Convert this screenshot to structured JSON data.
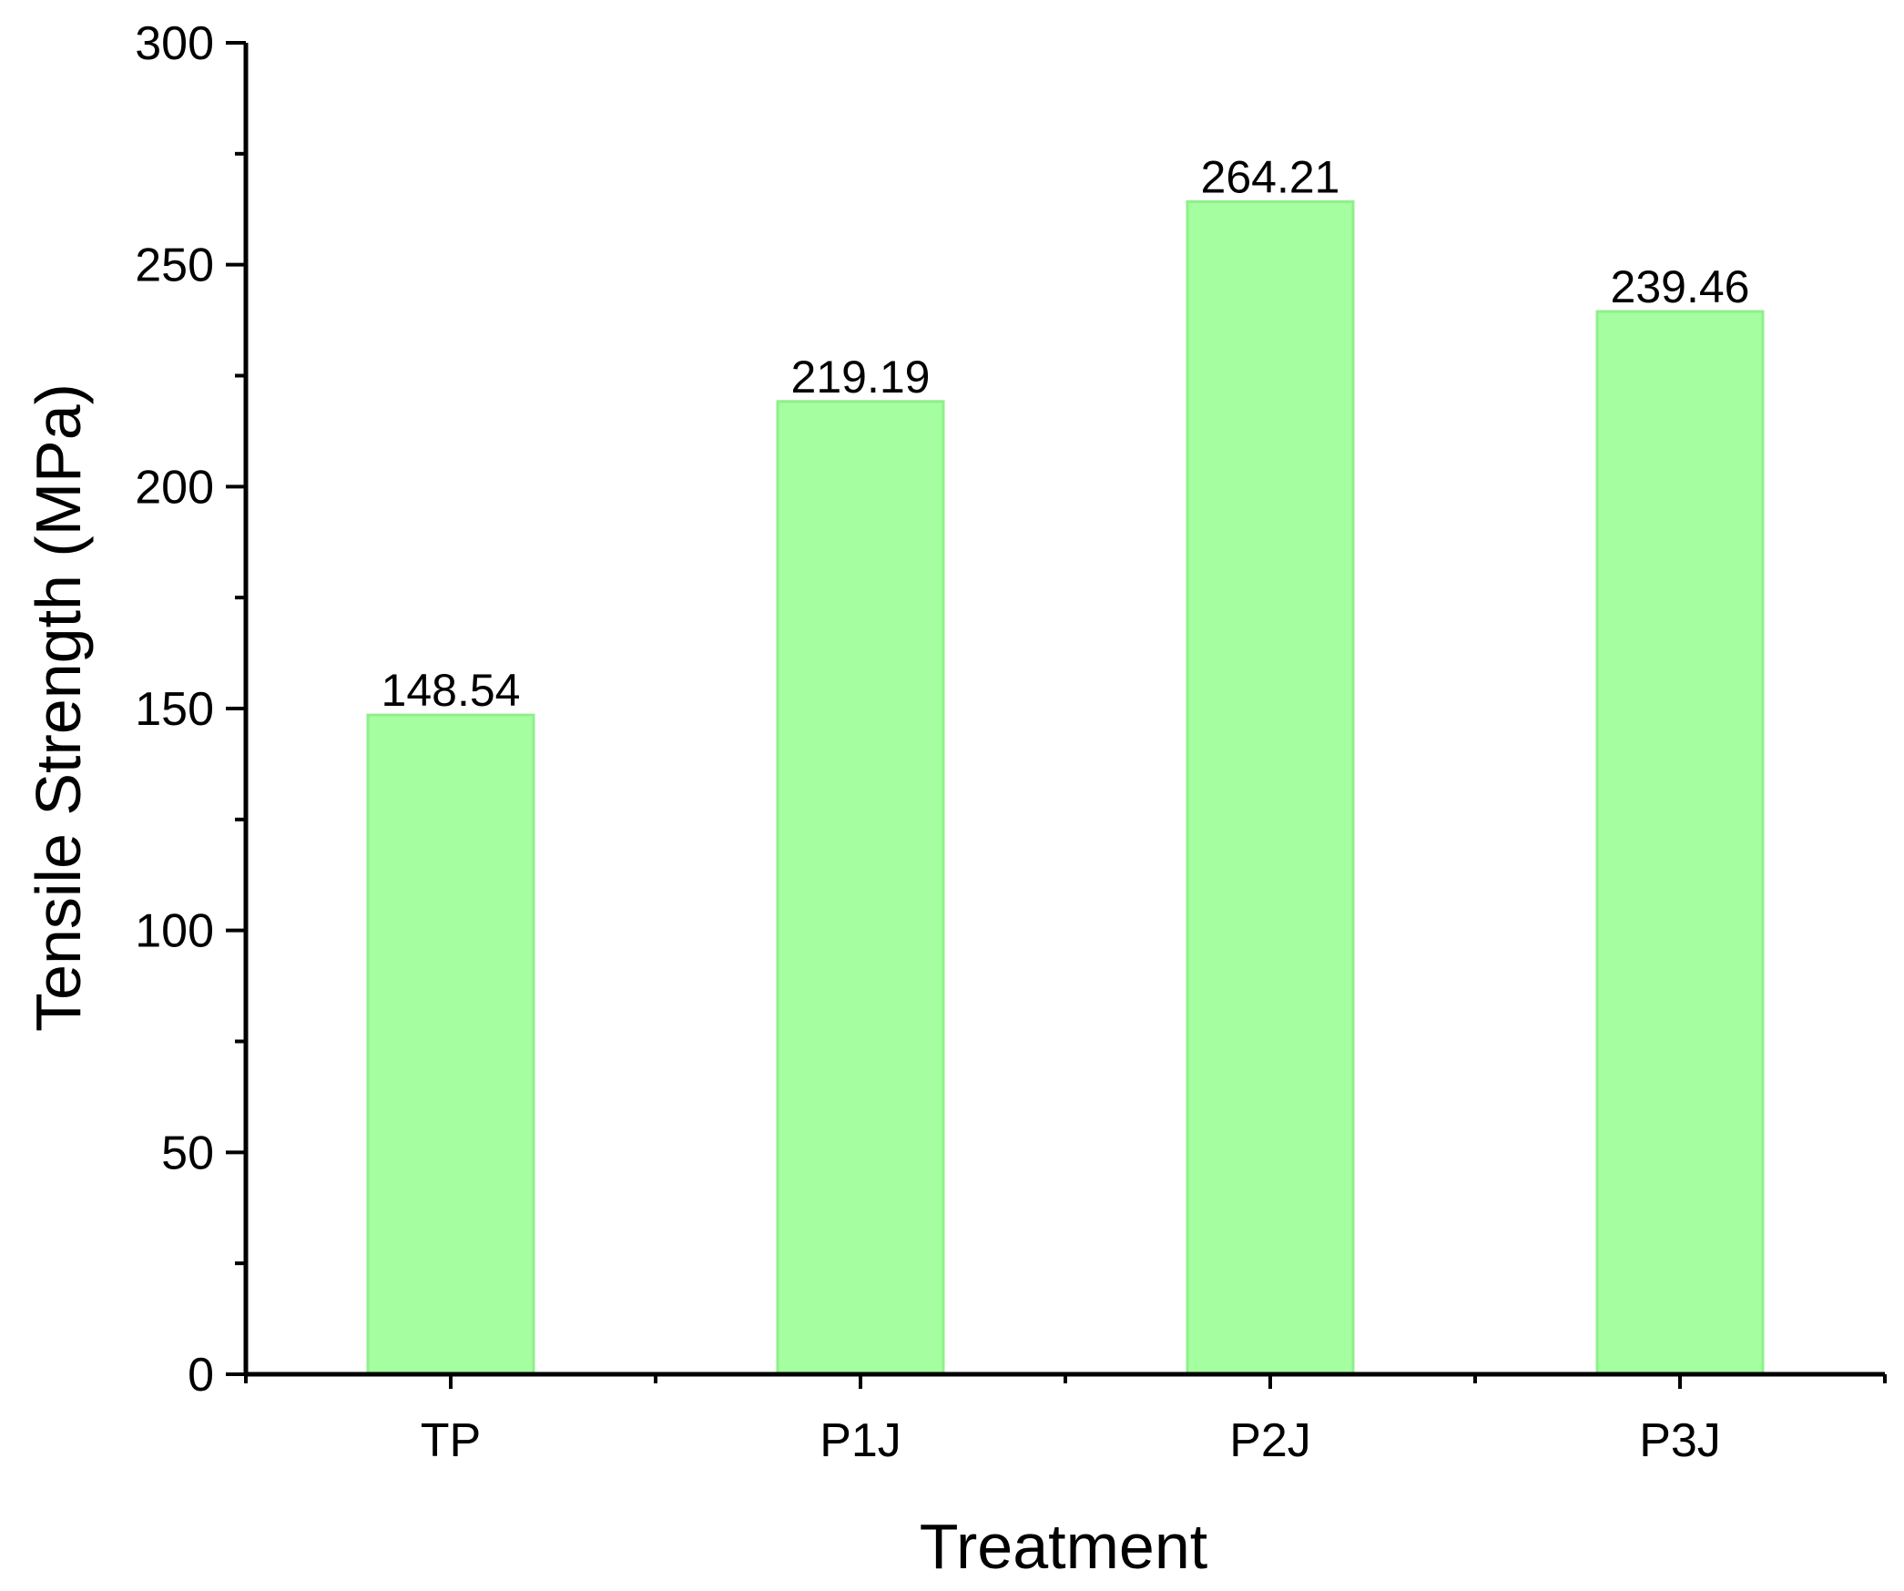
{
  "chart_data": {
    "type": "bar",
    "categories": [
      "TP",
      "P1J",
      "P2J",
      "P3J"
    ],
    "values": [
      148.54,
      219.19,
      264.21,
      239.46
    ],
    "data_labels": [
      "148.54",
      "219.19",
      "264.21",
      "239.46"
    ],
    "title": "",
    "xlabel": "Treatment",
    "ylabel": "Tensile Strength (MPa)",
    "ylim": [
      0,
      300
    ],
    "yticks": [
      0,
      50,
      100,
      150,
      200,
      250,
      300
    ],
    "ytick_labels": [
      "0",
      "50",
      "100",
      "150",
      "200",
      "250",
      "300"
    ],
    "y_minor_step": 25,
    "grid": false,
    "legend": "none",
    "colors": {
      "bar_fill": "#a5fea0",
      "bar_edge": "#8ff08a",
      "axis": "#000000"
    }
  }
}
